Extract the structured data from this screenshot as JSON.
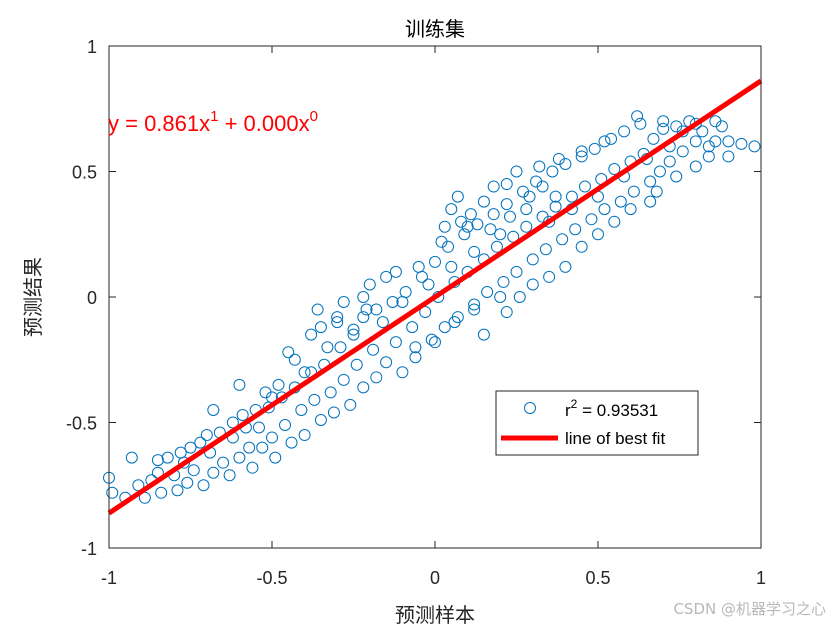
{
  "chart_data": {
    "type": "scatter",
    "title": "训练集",
    "xlabel": "预测样本",
    "ylabel": "预测结果",
    "xlim": [
      -1,
      1
    ],
    "ylim": [
      -1,
      1
    ],
    "xticks": [
      "-1",
      "-0.5",
      "0",
      "0.5",
      "1"
    ],
    "yticks": [
      "-1",
      "-0.5",
      "0",
      "0.5",
      "1"
    ],
    "grid": false,
    "legend_position": "bottom-right",
    "equation": {
      "prefix": "y = 0.861x",
      "exp1": "1",
      "middle": " + 0.000x",
      "exp2": "0"
    },
    "legend": {
      "r2_prefix": "r",
      "r2_sup": "2",
      "r2_value": " = 0.93531",
      "fit_label": "line of best fit"
    },
    "fit_line": {
      "slope": 0.861,
      "intercept": 0.0
    },
    "series": [
      {
        "marker": "open-circle",
        "color": "#0072bd",
        "points": [
          [
            -1.0,
            -0.72
          ],
          [
            -0.99,
            -0.78
          ],
          [
            -0.95,
            -0.8
          ],
          [
            -0.93,
            -0.64
          ],
          [
            -0.91,
            -0.75
          ],
          [
            -0.89,
            -0.8
          ],
          [
            -0.87,
            -0.73
          ],
          [
            -0.85,
            -0.7
          ],
          [
            -0.84,
            -0.78
          ],
          [
            -0.82,
            -0.64
          ],
          [
            -0.8,
            -0.71
          ],
          [
            -0.79,
            -0.77
          ],
          [
            -0.77,
            -0.66
          ],
          [
            -0.76,
            -0.74
          ],
          [
            -0.74,
            -0.69
          ],
          [
            -0.72,
            -0.58
          ],
          [
            -0.71,
            -0.75
          ],
          [
            -0.69,
            -0.62
          ],
          [
            -0.68,
            -0.7
          ],
          [
            -0.66,
            -0.54
          ],
          [
            -0.65,
            -0.66
          ],
          [
            -0.63,
            -0.71
          ],
          [
            -0.62,
            -0.56
          ],
          [
            -0.6,
            -0.64
          ],
          [
            -0.59,
            -0.47
          ],
          [
            -0.57,
            -0.6
          ],
          [
            -0.56,
            -0.68
          ],
          [
            -0.54,
            -0.52
          ],
          [
            -0.53,
            -0.6
          ],
          [
            -0.51,
            -0.44
          ],
          [
            -0.5,
            -0.56
          ],
          [
            -0.49,
            -0.64
          ],
          [
            -0.47,
            -0.4
          ],
          [
            -0.46,
            -0.51
          ],
          [
            -0.44,
            -0.58
          ],
          [
            -0.43,
            -0.36
          ],
          [
            -0.41,
            -0.45
          ],
          [
            -0.4,
            -0.55
          ],
          [
            -0.38,
            -0.3
          ],
          [
            -0.37,
            -0.41
          ],
          [
            -0.35,
            -0.49
          ],
          [
            -0.34,
            -0.27
          ],
          [
            -0.32,
            -0.38
          ],
          [
            -0.31,
            -0.46
          ],
          [
            -0.29,
            -0.2
          ],
          [
            -0.28,
            -0.33
          ],
          [
            -0.26,
            -0.43
          ],
          [
            -0.25,
            -0.13
          ],
          [
            -0.24,
            -0.27
          ],
          [
            -0.22,
            -0.36
          ],
          [
            -0.21,
            -0.05
          ],
          [
            -0.19,
            -0.21
          ],
          [
            -0.18,
            -0.32
          ],
          [
            -0.16,
            -0.1
          ],
          [
            -0.15,
            -0.26
          ],
          [
            -0.13,
            -0.02
          ],
          [
            -0.12,
            -0.18
          ],
          [
            -0.1,
            -0.3
          ],
          [
            -0.09,
            0.02
          ],
          [
            -0.07,
            -0.12
          ],
          [
            -0.06,
            -0.24
          ],
          [
            -0.04,
            0.08
          ],
          [
            -0.03,
            -0.06
          ],
          [
            -0.01,
            -0.17
          ],
          [
            0.0,
            0.14
          ],
          [
            0.01,
            0.0
          ],
          [
            0.03,
            -0.12
          ],
          [
            0.04,
            0.2
          ],
          [
            0.06,
            0.06
          ],
          [
            0.07,
            -0.08
          ],
          [
            0.09,
            0.25
          ],
          [
            0.1,
            0.1
          ],
          [
            0.12,
            -0.03
          ],
          [
            0.13,
            0.29
          ],
          [
            0.15,
            0.15
          ],
          [
            0.16,
            0.02
          ],
          [
            0.18,
            0.33
          ],
          [
            0.19,
            0.2
          ],
          [
            0.21,
            0.06
          ],
          [
            0.22,
            0.37
          ],
          [
            0.24,
            0.24
          ],
          [
            0.25,
            0.1
          ],
          [
            0.27,
            0.42
          ],
          [
            0.28,
            0.28
          ],
          [
            0.3,
            0.15
          ],
          [
            0.31,
            0.46
          ],
          [
            0.33,
            0.32
          ],
          [
            0.34,
            0.19
          ],
          [
            0.36,
            0.5
          ],
          [
            0.37,
            0.36
          ],
          [
            0.39,
            0.23
          ],
          [
            0.4,
            0.53
          ],
          [
            0.42,
            0.4
          ],
          [
            0.43,
            0.27
          ],
          [
            0.45,
            0.56
          ],
          [
            0.46,
            0.44
          ],
          [
            0.48,
            0.31
          ],
          [
            0.49,
            0.59
          ],
          [
            0.51,
            0.47
          ],
          [
            0.52,
            0.35
          ],
          [
            0.54,
            0.63
          ],
          [
            0.55,
            0.51
          ],
          [
            0.57,
            0.38
          ],
          [
            0.58,
            0.66
          ],
          [
            0.6,
            0.54
          ],
          [
            0.61,
            0.42
          ],
          [
            0.63,
            0.69
          ],
          [
            0.64,
            0.57
          ],
          [
            0.66,
            0.46
          ],
          [
            0.67,
            0.63
          ],
          [
            0.69,
            0.5
          ],
          [
            0.7,
            0.67
          ],
          [
            0.72,
            0.54
          ],
          [
            0.74,
            0.68
          ],
          [
            0.76,
            0.58
          ],
          [
            0.78,
            0.7
          ],
          [
            0.8,
            0.62
          ],
          [
            0.82,
            0.66
          ],
          [
            0.84,
            0.6
          ],
          [
            0.86,
            0.7
          ],
          [
            0.88,
            0.68
          ],
          [
            0.9,
            0.56
          ],
          [
            0.94,
            0.61
          ],
          [
            0.98,
            0.6
          ],
          [
            -0.85,
            -0.65
          ],
          [
            -0.78,
            -0.62
          ],
          [
            -0.7,
            -0.55
          ],
          [
            -0.62,
            -0.5
          ],
          [
            -0.55,
            -0.45
          ],
          [
            -0.48,
            -0.35
          ],
          [
            -0.4,
            -0.3
          ],
          [
            -0.33,
            -0.2
          ],
          [
            -0.25,
            -0.15
          ],
          [
            -0.18,
            -0.05
          ],
          [
            -0.1,
            -0.02
          ],
          [
            -0.02,
            0.05
          ],
          [
            0.05,
            0.12
          ],
          [
            0.12,
            0.18
          ],
          [
            0.2,
            0.25
          ],
          [
            0.28,
            0.35
          ],
          [
            0.35,
            0.3
          ],
          [
            0.42,
            0.35
          ],
          [
            0.5,
            0.4
          ],
          [
            0.58,
            0.48
          ],
          [
            0.65,
            0.55
          ],
          [
            0.72,
            0.6
          ],
          [
            0.8,
            0.69
          ],
          [
            0.86,
            0.62
          ],
          [
            -0.3,
            -0.08
          ],
          [
            -0.2,
            0.05
          ],
          [
            -0.15,
            0.08
          ],
          [
            -0.05,
            0.12
          ],
          [
            0.02,
            0.22
          ],
          [
            0.08,
            0.3
          ],
          [
            0.15,
            0.38
          ],
          [
            0.22,
            0.45
          ],
          [
            0.05,
            0.35
          ],
          [
            0.1,
            0.28
          ],
          [
            0.18,
            0.44
          ],
          [
            0.25,
            0.5
          ],
          [
            0.32,
            0.52
          ],
          [
            0.38,
            0.55
          ],
          [
            0.45,
            0.58
          ],
          [
            0.52,
            0.62
          ],
          [
            -0.45,
            -0.22
          ],
          [
            -0.38,
            -0.15
          ],
          [
            -0.3,
            -0.1
          ],
          [
            -0.22,
            0.0
          ],
          [
            -0.12,
            0.1
          ],
          [
            -0.35,
            -0.12
          ],
          [
            -0.5,
            -0.4
          ],
          [
            -0.58,
            -0.52
          ],
          [
            0.3,
            0.05
          ],
          [
            0.35,
            0.08
          ],
          [
            0.4,
            0.12
          ],
          [
            0.45,
            0.2
          ],
          [
            0.5,
            0.25
          ],
          [
            0.55,
            0.3
          ],
          [
            0.6,
            0.35
          ],
          [
            0.68,
            0.42
          ],
          [
            0.0,
            -0.18
          ],
          [
            0.06,
            -0.1
          ],
          [
            0.12,
            -0.05
          ],
          [
            0.2,
            0.0
          ],
          [
            -0.06,
            -0.2
          ],
          [
            0.15,
            -0.15
          ],
          [
            0.22,
            -0.06
          ],
          [
            0.26,
            0.0
          ],
          [
            -0.75,
            -0.6
          ],
          [
            -0.68,
            -0.45
          ],
          [
            -0.6,
            -0.35
          ],
          [
            -0.52,
            -0.38
          ],
          [
            -0.43,
            -0.25
          ],
          [
            -0.36,
            -0.05
          ],
          [
            -0.28,
            -0.02
          ],
          [
            -0.22,
            -0.08
          ],
          [
            0.62,
            0.72
          ],
          [
            0.7,
            0.7
          ],
          [
            0.76,
            0.66
          ],
          [
            0.84,
            0.56
          ],
          [
            0.9,
            0.62
          ],
          [
            0.66,
            0.38
          ],
          [
            0.74,
            0.48
          ],
          [
            0.8,
            0.52
          ],
          [
            0.03,
            0.28
          ],
          [
            0.07,
            0.4
          ],
          [
            0.11,
            0.33
          ],
          [
            0.17,
            0.27
          ],
          [
            0.23,
            0.32
          ],
          [
            0.29,
            0.4
          ],
          [
            0.33,
            0.44
          ],
          [
            0.37,
            0.4
          ]
        ]
      }
    ]
  },
  "watermark": "CSDN @机器学习之心"
}
